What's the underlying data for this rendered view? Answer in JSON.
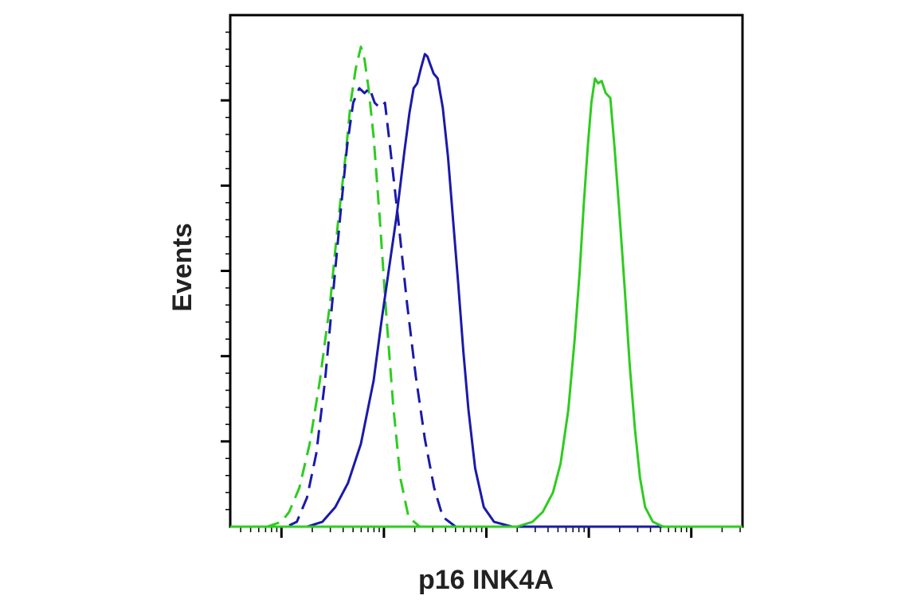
{
  "chart_data": {
    "type": "line",
    "title": "",
    "xlabel": "p16 INK4A",
    "ylabel": "Events",
    "x_scale": "log",
    "xlim": [
      0,
      10
    ],
    "ylim": [
      0,
      1.05
    ],
    "tick_labels_shown": false,
    "grid": false,
    "legend": "none",
    "series": [
      {
        "color": "#2ecc1f",
        "dash": "dashed",
        "points": [
          [
            0.25,
            0
          ],
          [
            0.72,
            0
          ],
          [
            1.0,
            0.01
          ],
          [
            1.15,
            0.03
          ],
          [
            1.35,
            0.08
          ],
          [
            1.55,
            0.17
          ],
          [
            1.75,
            0.3
          ],
          [
            1.95,
            0.46
          ],
          [
            2.1,
            0.62
          ],
          [
            2.25,
            0.76
          ],
          [
            2.35,
            0.87
          ],
          [
            2.45,
            0.94
          ],
          [
            2.55,
            0.985
          ],
          [
            2.62,
            0.96
          ],
          [
            2.7,
            0.9
          ],
          [
            2.8,
            0.8
          ],
          [
            2.92,
            0.63
          ],
          [
            3.05,
            0.43
          ],
          [
            3.18,
            0.25
          ],
          [
            3.32,
            0.1
          ],
          [
            3.48,
            0.02
          ],
          [
            3.7,
            0
          ]
        ]
      },
      {
        "color": "#1a1aaa",
        "dash": "dashed",
        "points": [
          [
            0.72,
            0
          ],
          [
            1.1,
            0
          ],
          [
            1.3,
            0.01
          ],
          [
            1.5,
            0.06
          ],
          [
            1.68,
            0.15
          ],
          [
            1.85,
            0.3
          ],
          [
            2.0,
            0.47
          ],
          [
            2.15,
            0.64
          ],
          [
            2.28,
            0.78
          ],
          [
            2.4,
            0.87
          ],
          [
            2.52,
            0.9
          ],
          [
            2.62,
            0.89
          ],
          [
            2.72,
            0.9
          ],
          [
            2.82,
            0.87
          ],
          [
            2.92,
            0.86
          ],
          [
            3.02,
            0.87
          ],
          [
            3.12,
            0.78
          ],
          [
            3.28,
            0.63
          ],
          [
            3.45,
            0.46
          ],
          [
            3.62,
            0.31
          ],
          [
            3.8,
            0.18
          ],
          [
            3.98,
            0.08
          ],
          [
            4.15,
            0.02
          ],
          [
            4.4,
            0
          ]
        ]
      },
      {
        "color": "#1a1aaa",
        "dash": "solid",
        "points": [
          [
            0.75,
            0
          ],
          [
            1.5,
            0
          ],
          [
            1.8,
            0.01
          ],
          [
            2.05,
            0.04
          ],
          [
            2.3,
            0.09
          ],
          [
            2.55,
            0.17
          ],
          [
            2.8,
            0.3
          ],
          [
            2.95,
            0.42
          ],
          [
            3.1,
            0.53
          ],
          [
            3.25,
            0.64
          ],
          [
            3.4,
            0.77
          ],
          [
            3.5,
            0.85
          ],
          [
            3.58,
            0.9
          ],
          [
            3.65,
            0.91
          ],
          [
            3.72,
            0.94
          ],
          [
            3.8,
            0.97
          ],
          [
            3.85,
            0.965
          ],
          [
            3.9,
            0.95
          ],
          [
            3.97,
            0.93
          ],
          [
            4.05,
            0.92
          ],
          [
            4.15,
            0.86
          ],
          [
            4.25,
            0.76
          ],
          [
            4.35,
            0.63
          ],
          [
            4.45,
            0.5
          ],
          [
            4.55,
            0.36
          ],
          [
            4.65,
            0.24
          ],
          [
            4.78,
            0.12
          ],
          [
            4.95,
            0.04
          ],
          [
            5.15,
            0.01
          ],
          [
            5.5,
            0
          ],
          [
            10,
            0
          ]
        ]
      },
      {
        "color": "#2ecc1f",
        "dash": "solid",
        "points": [
          [
            0,
            0
          ],
          [
            5.6,
            0
          ],
          [
            5.9,
            0.01
          ],
          [
            6.1,
            0.03
          ],
          [
            6.3,
            0.07
          ],
          [
            6.45,
            0.13
          ],
          [
            6.6,
            0.24
          ],
          [
            6.72,
            0.38
          ],
          [
            6.82,
            0.52
          ],
          [
            6.9,
            0.66
          ],
          [
            6.98,
            0.78
          ],
          [
            7.05,
            0.87
          ],
          [
            7.12,
            0.92
          ],
          [
            7.18,
            0.91
          ],
          [
            7.25,
            0.915
          ],
          [
            7.33,
            0.89
          ],
          [
            7.42,
            0.88
          ],
          [
            7.5,
            0.78
          ],
          [
            7.6,
            0.64
          ],
          [
            7.7,
            0.49
          ],
          [
            7.8,
            0.33
          ],
          [
            7.9,
            0.2
          ],
          [
            8.0,
            0.1
          ],
          [
            8.1,
            0.04
          ],
          [
            8.25,
            0.01
          ],
          [
            8.45,
            0
          ],
          [
            10,
            0
          ]
        ]
      }
    ]
  }
}
